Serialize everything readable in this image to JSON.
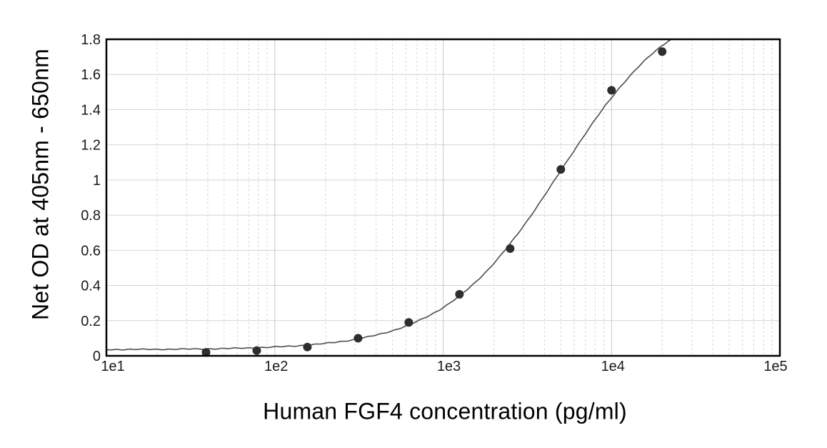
{
  "chart_data": {
    "type": "scatter",
    "title": "",
    "xlabel": "Human FGF4 concentration (pg/ml)",
    "ylabel": "Net OD at 405nm - 650nm",
    "x_scale": "log10",
    "xlim": [
      10,
      100000
    ],
    "ylim": [
      0,
      1.8
    ],
    "grid": {
      "horizontal": "solid",
      "vertical_minor": "dashed",
      "vertical_decade": "solid"
    },
    "x_tick_labels": [
      "1e1",
      "1e2",
      "1e3",
      "1e4",
      "1e5"
    ],
    "x_tick_values": [
      10,
      100,
      1000,
      10000,
      100000
    ],
    "y_tick_labels": [
      "0",
      "0.2",
      "0.4",
      "0.6",
      "0.8",
      "1",
      "1.2",
      "1.4",
      "1.6",
      "1.8"
    ],
    "y_tick_values": [
      0,
      0.2,
      0.4,
      0.6,
      0.8,
      1.0,
      1.2,
      1.4,
      1.6,
      1.8
    ],
    "points": [
      {
        "x": 39.06,
        "y": 0.02
      },
      {
        "x": 78.13,
        "y": 0.03
      },
      {
        "x": 156.25,
        "y": 0.05
      },
      {
        "x": 312.5,
        "y": 0.1
      },
      {
        "x": 625,
        "y": 0.19
      },
      {
        "x": 1250,
        "y": 0.35
      },
      {
        "x": 2500,
        "y": 0.61
      },
      {
        "x": 5000,
        "y": 1.06
      },
      {
        "x": 10000,
        "y": 1.51
      },
      {
        "x": 20000,
        "y": 1.73
      }
    ],
    "fit_curve": {
      "model": "4PL",
      "bottom": 0.035,
      "top": 2.07,
      "ec50": 5000,
      "hill": 1.25
    },
    "colors": {
      "background": "#ffffff",
      "frame": "#000000",
      "grid_horizontal": "#d4d4d4",
      "grid_minor": "#d6d6d6",
      "grid_decade": "#c8c8c8",
      "curve": "#4d4d4d",
      "point": "#2e2e2e",
      "text": "#1a1a1a"
    }
  }
}
